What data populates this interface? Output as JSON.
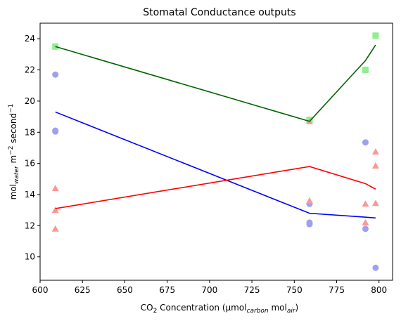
{
  "chart_data": {
    "type": "scatter",
    "title": "Stomatal Conductance outputs",
    "xlabel": {
      "base": "CO",
      "sub": "2",
      "middle": " Concentration (μmol",
      "sub2": "carbon",
      "middle2": " mol",
      "sub3": "air",
      "end": ")"
    },
    "ylabel": {
      "base": "mol",
      "sub": "water",
      "middle": " m",
      "sup": "−2",
      "middle2": " second",
      "sup2": "−1"
    },
    "xlim": [
      600,
      808
    ],
    "ylim": [
      8.5,
      25
    ],
    "xticks": [
      600,
      625,
      650,
      675,
      700,
      725,
      750,
      775,
      800
    ],
    "yticks": [
      10,
      12,
      14,
      16,
      18,
      20,
      22,
      24
    ],
    "grid": false,
    "series": [
      {
        "marker": "square",
        "color": "#90ee90",
        "points": [
          [
            609,
            23.5
          ],
          [
            759,
            18.8
          ],
          [
            792,
            22.0
          ],
          [
            798,
            24.2
          ]
        ],
        "line": {
          "color": "#006400",
          "x": [
            609,
            759,
            792,
            798
          ],
          "y": [
            23.5,
            18.7,
            22.6,
            23.6
          ]
        }
      },
      {
        "marker": "circle",
        "color": "#a0a0f0",
        "points": [
          [
            609,
            21.7
          ],
          [
            609,
            18.1
          ],
          [
            609,
            18.05
          ],
          [
            759,
            13.4
          ],
          [
            759,
            12.2
          ],
          [
            759,
            12.1
          ],
          [
            792,
            17.35
          ],
          [
            792,
            11.8
          ],
          [
            798,
            9.3
          ]
        ],
        "line": {
          "color": "#0000ff",
          "x": [
            609,
            759,
            792,
            798
          ],
          "y": [
            19.3,
            12.8,
            12.55,
            12.5
          ]
        }
      },
      {
        "marker": "triangle",
        "color": "#f59a9a",
        "points": [
          [
            609,
            14.4
          ],
          [
            609,
            13.0
          ],
          [
            609,
            11.8
          ],
          [
            759,
            13.6
          ],
          [
            759,
            18.7
          ],
          [
            792,
            13.4
          ],
          [
            792,
            12.2
          ],
          [
            798,
            16.75
          ],
          [
            798,
            15.85
          ],
          [
            798,
            13.45
          ]
        ],
        "line": {
          "color": "#ff0000",
          "x": [
            609,
            759,
            792,
            798
          ],
          "y": [
            13.1,
            15.8,
            14.7,
            14.35
          ]
        }
      }
    ]
  }
}
